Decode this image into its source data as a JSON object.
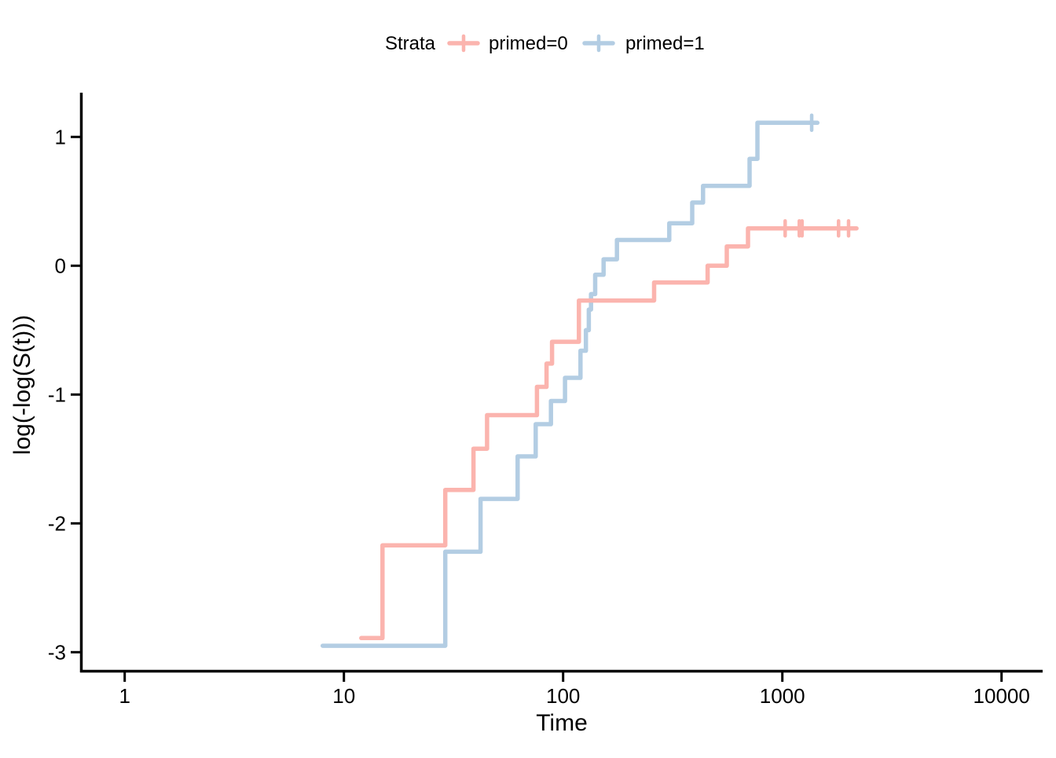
{
  "legend": {
    "title": "Strata",
    "items": [
      {
        "label": "primed=0",
        "color": "#FBB4AE"
      },
      {
        "label": "primed=1",
        "color": "#B3CDE3"
      }
    ]
  },
  "axes": {
    "x": {
      "label": "Time",
      "scale": "log10",
      "tick_labels": [
        "1",
        "10",
        "100",
        "1000",
        "10000"
      ]
    },
    "y": {
      "label": "log(-log(S(t)))",
      "scale": "linear",
      "tick_labels": [
        "1",
        "0",
        "-1",
        "-2",
        "-3"
      ]
    }
  },
  "colors": {
    "stratum0": "#FBB4AE",
    "stratum1": "#B3CDE3",
    "axis": "#000000",
    "background": "#FFFFFF"
  },
  "chart_data": {
    "type": "line",
    "subtype": "kaplan-meier-cloglog-step",
    "title": "",
    "xlabel": "Time",
    "ylabel": "log(-log(S(t)))",
    "x_scale": "log10",
    "x_ticks": [
      1,
      10,
      100,
      1000,
      10000
    ],
    "y_ticks": [
      1,
      0,
      -1,
      -2,
      -3
    ],
    "x_range": [
      0.63,
      15400
    ],
    "y_range": [
      -3.14,
      1.3
    ],
    "grid": "off",
    "legend_position": "top",
    "series": [
      {
        "name": "primed=0",
        "color": "#FBB4AE",
        "points": [
          [
            12,
            -2.89
          ],
          [
            15,
            -2.17
          ],
          [
            29,
            -1.74
          ],
          [
            39,
            -1.42
          ],
          [
            45,
            -1.16
          ],
          [
            76,
            -0.94
          ],
          [
            84,
            -0.76
          ],
          [
            89,
            -0.59
          ],
          [
            118,
            -0.27
          ],
          [
            260,
            -0.13
          ],
          [
            456,
            0
          ],
          [
            558,
            0.15
          ],
          [
            697,
            0.29
          ]
        ],
        "censor_times": [
          1030,
          1195,
          1230,
          1805,
          2005
        ],
        "line_end": 2180
      },
      {
        "name": "primed=1",
        "color": "#B3CDE3",
        "points": [
          [
            8,
            -2.95
          ],
          [
            29,
            -2.22
          ],
          [
            42,
            -1.81
          ],
          [
            62,
            -1.48
          ],
          [
            75,
            -1.23
          ],
          [
            88,
            -1.05
          ],
          [
            102,
            -0.87
          ],
          [
            120,
            -0.66
          ],
          [
            127,
            -0.5
          ],
          [
            131,
            -0.34
          ],
          [
            134,
            -0.22
          ],
          [
            140,
            -0.07
          ],
          [
            153,
            0.05
          ],
          [
            176,
            0.2
          ],
          [
            305,
            0.33
          ],
          [
            388,
            0.49
          ],
          [
            435,
            0.62
          ],
          [
            709,
            0.83
          ],
          [
            770,
            1.11
          ]
        ],
        "censor_times": [
          1361
        ],
        "line_end": 1445
      }
    ]
  }
}
